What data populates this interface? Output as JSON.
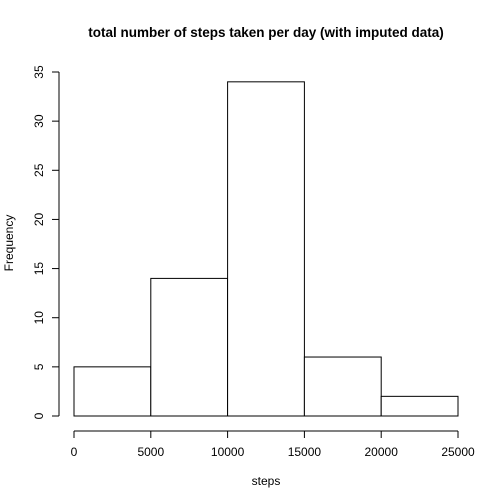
{
  "chart_data": {
    "type": "bar",
    "title": "total number of steps taken per day (with imputed data)",
    "xlabel": "steps",
    "ylabel": "Frequency",
    "bins": [
      {
        "x0": 0,
        "x1": 5000,
        "count": 5
      },
      {
        "x0": 5000,
        "x1": 10000,
        "count": 14
      },
      {
        "x0": 10000,
        "x1": 15000,
        "count": 34
      },
      {
        "x0": 15000,
        "x1": 20000,
        "count": 6
      },
      {
        "x0": 20000,
        "x1": 25000,
        "count": 2
      }
    ],
    "xlim": [
      0,
      25000
    ],
    "ylim": [
      0,
      35
    ],
    "xticks": [
      0,
      5000,
      10000,
      15000,
      20000,
      25000
    ],
    "yticks": [
      0,
      5,
      10,
      15,
      20,
      25,
      30,
      35
    ],
    "grid": false,
    "bar_fill": "#ffffff",
    "bar_stroke": "#000000"
  }
}
